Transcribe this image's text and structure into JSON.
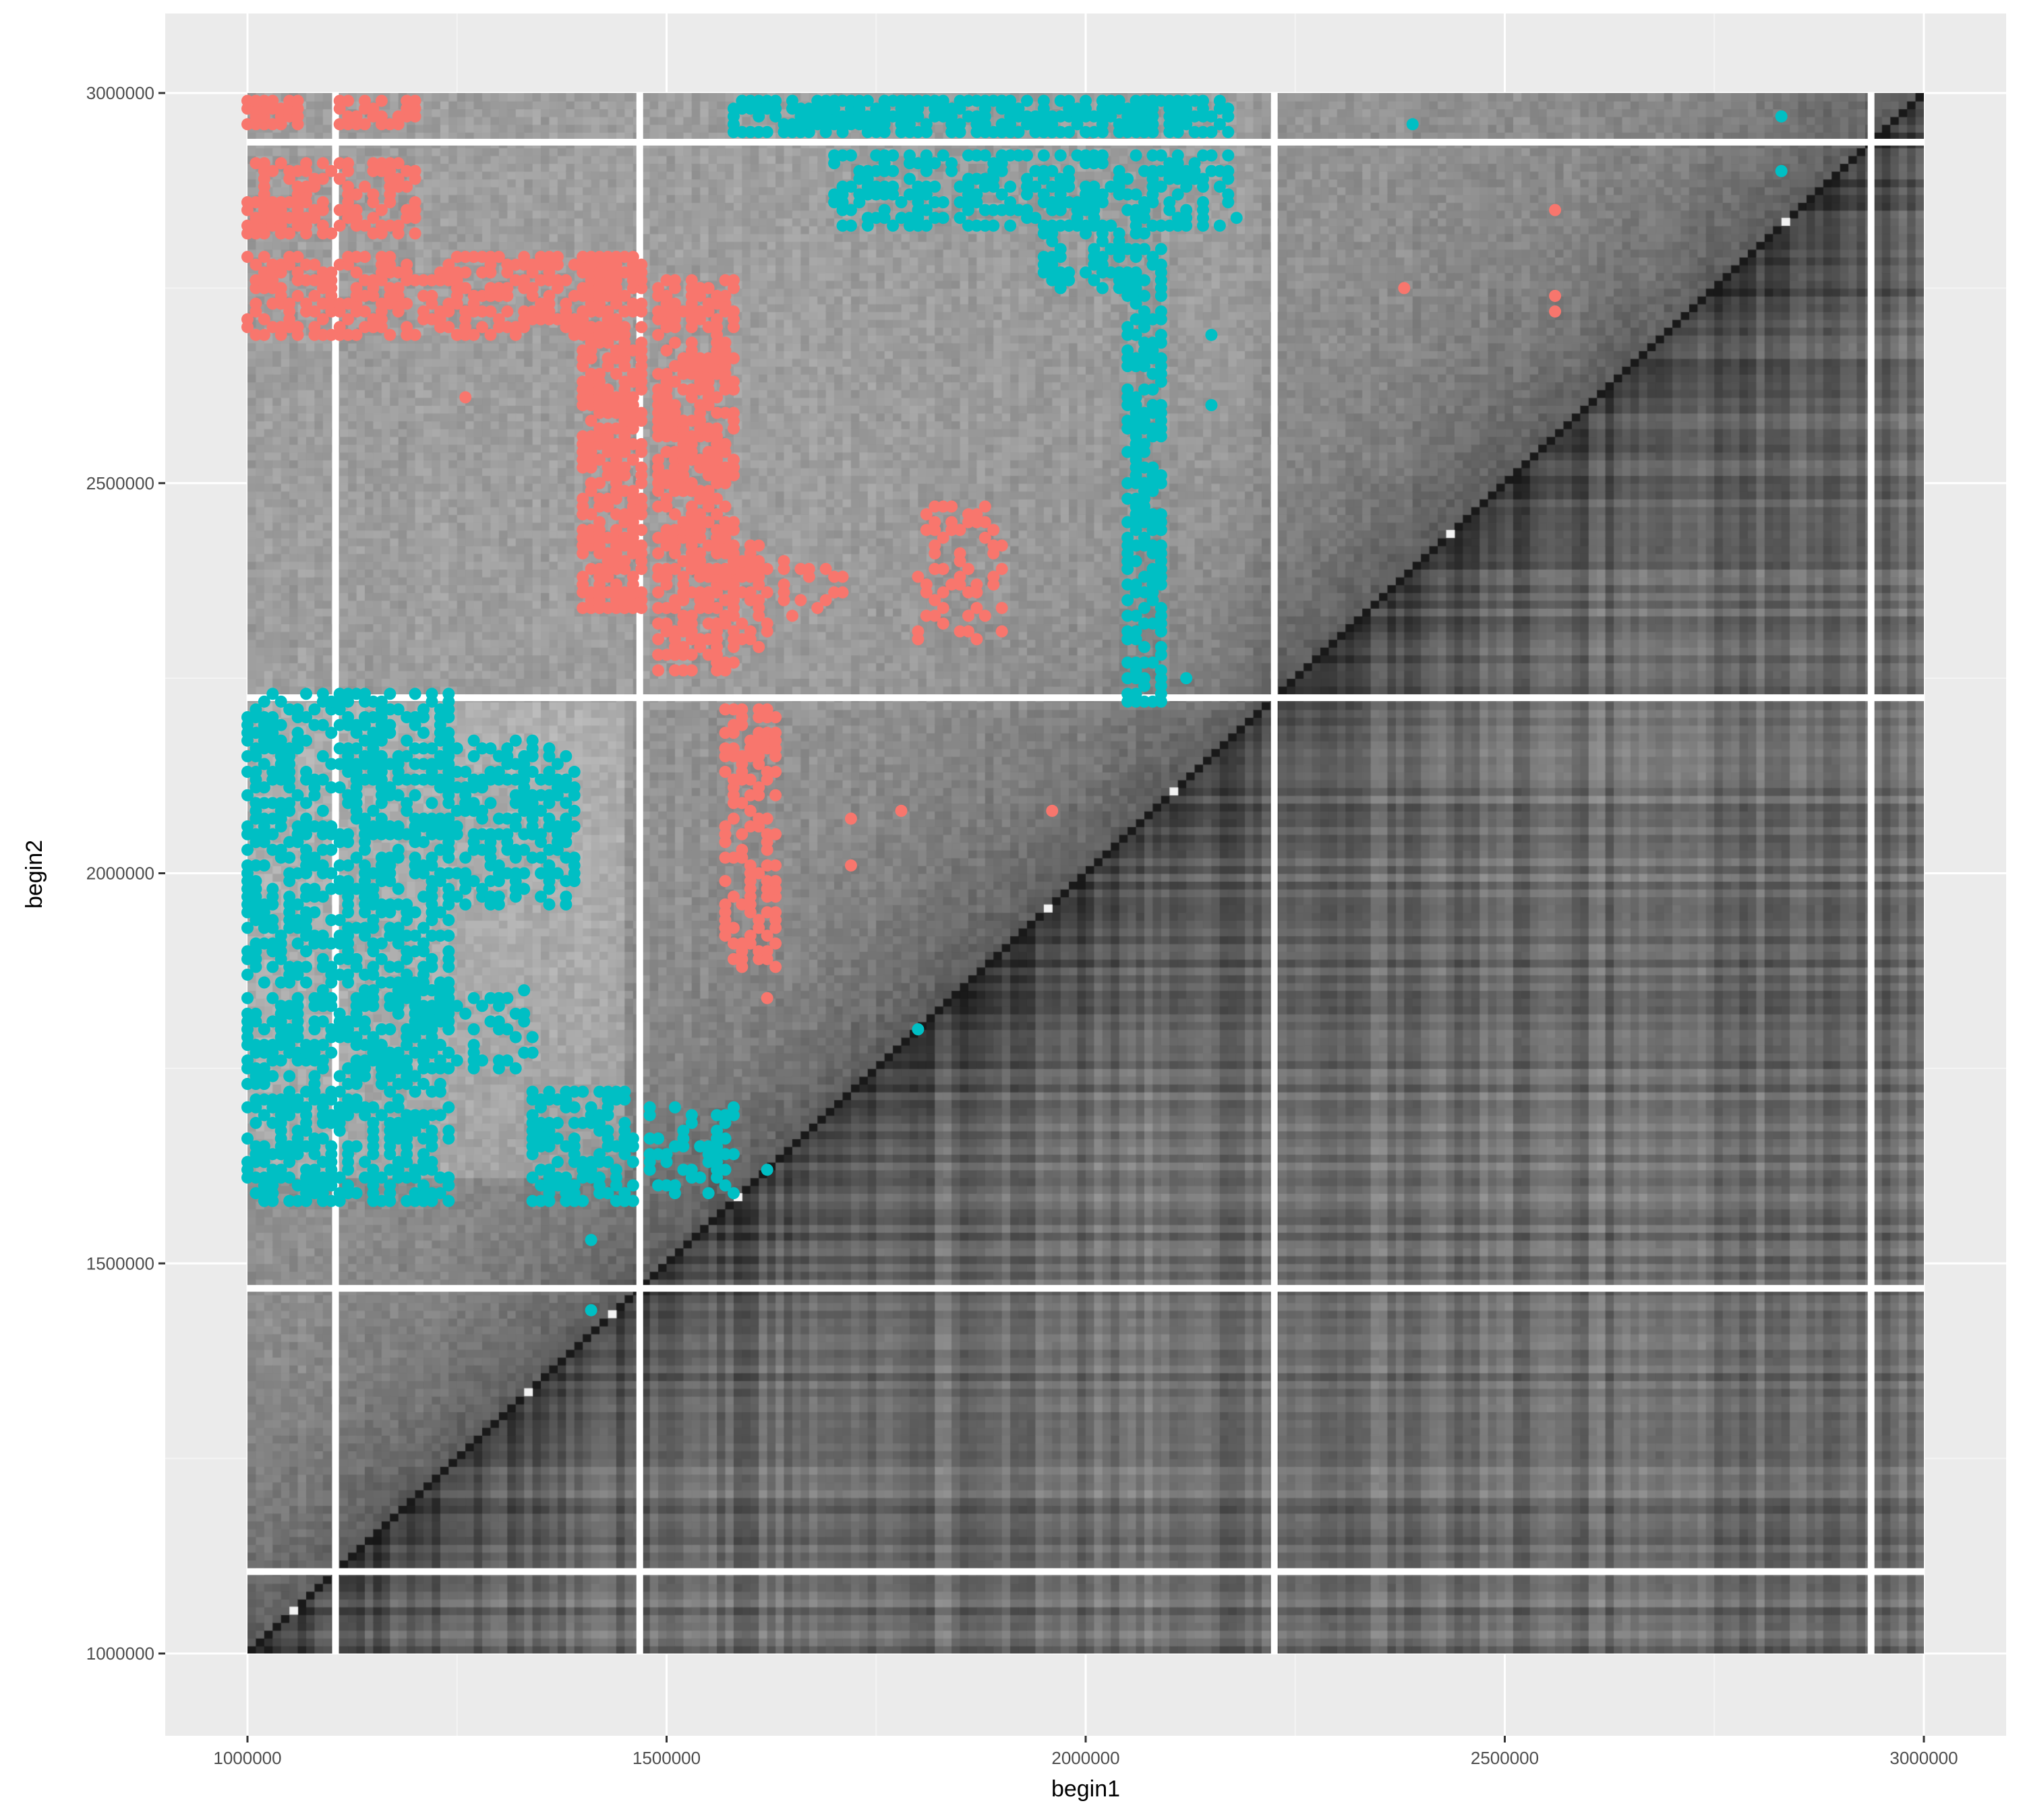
{
  "chart_data": {
    "type": "heatmap",
    "title": "",
    "xlabel": "begin1",
    "ylabel": "begin2",
    "xlim": [
      900000,
      3040000
    ],
    "ylim": [
      910000,
      3040000
    ],
    "x_ticks": [
      1000000,
      1500000,
      2000000,
      2500000,
      3000000
    ],
    "x_tick_labels": [
      "1000000",
      "1500000",
      "2000000",
      "2500000",
      "3000000"
    ],
    "y_ticks": [
      1000000,
      1500000,
      2000000,
      2500000,
      3000000
    ],
    "y_tick_labels": [
      "1000000",
      "1500000",
      "2000000",
      "2500000",
      "3000000"
    ],
    "grid": true,
    "legend": "none",
    "heatmap_extent": {
      "x": [
        1000000,
        3000000
      ],
      "y": [
        1000000,
        3000000
      ]
    },
    "bin_size": 10000,
    "gap_positions": [
      1105000,
      1468000,
      2225000,
      2937000
    ],
    "colors": {
      "panel_bg": "#ebebeb",
      "grid_major": "#ffffff",
      "grid_minor": "#f4f4f4",
      "series_a": "#f8766d",
      "series_b": "#00bfc4"
    },
    "series": [
      {
        "color": "#f8766d",
        "clusters": [
          {
            "x": [
              1000000,
              1060000
            ],
            "y": [
              2960000,
              2990000
            ],
            "density": 0.8
          },
          {
            "x": [
              1000000,
              1200000
            ],
            "y": [
              2820000,
              2910000
            ],
            "density": 0.55
          },
          {
            "x": [
              1000000,
              1420000
            ],
            "y": [
              2690000,
              2790000
            ],
            "density": 0.5
          },
          {
            "x": [
              1100000,
              1200000
            ],
            "y": [
              2960000,
              2990000
            ],
            "density": 0.6
          },
          {
            "x": [
              1400000,
              1470000
            ],
            "y": [
              2340000,
              2790000
            ],
            "density": 0.7
          },
          {
            "x": [
              1490000,
              1580000
            ],
            "y": [
              2260000,
              2760000
            ],
            "density": 0.6
          },
          {
            "x": [
              1560000,
              1620000
            ],
            "y": [
              2290000,
              2420000
            ],
            "density": 0.5
          },
          {
            "x": [
              1570000,
              1630000
            ],
            "y": [
              1880000,
              2210000
            ],
            "density": 0.45
          },
          {
            "x": [
              1640000,
              1720000
            ],
            "y": [
              2330000,
              2400000
            ],
            "density": 0.3
          },
          {
            "x": [
              1800000,
              1900000
            ],
            "y": [
              2300000,
              2470000
            ],
            "density": 0.3
          }
        ],
        "points": [
          {
            "x": 2380000,
            "y": 2750000
          },
          {
            "x": 2560000,
            "y": 2850000
          },
          {
            "x": 2560000,
            "y": 2740000
          },
          {
            "x": 2560000,
            "y": 2720000
          },
          {
            "x": 1720000,
            "y": 2070000
          },
          {
            "x": 1720000,
            "y": 2010000
          },
          {
            "x": 1780000,
            "y": 2080000
          },
          {
            "x": 1960000,
            "y": 2080000
          },
          {
            "x": 1620000,
            "y": 1840000
          },
          {
            "x": 1260000,
            "y": 2610000
          }
        ]
      },
      {
        "color": "#00bfc4",
        "clusters": [
          {
            "x": [
              1580000,
              2170000
            ],
            "y": [
              2950000,
              2990000
            ],
            "density": 0.7
          },
          {
            "x": [
              1700000,
              2170000
            ],
            "y": [
              2830000,
              2920000
            ],
            "density": 0.55
          },
          {
            "x": [
              1950000,
              2090000
            ],
            "y": [
              2750000,
              2830000
            ],
            "density": 0.45
          },
          {
            "x": [
              2050000,
              2090000
            ],
            "y": [
              2220000,
              2760000
            ],
            "density": 0.6
          },
          {
            "x": [
              1000000,
              1240000
            ],
            "y": [
              1580000,
              2230000
            ],
            "density": 0.55
          },
          {
            "x": [
              1240000,
              1390000
            ],
            "y": [
              1960000,
              2170000
            ],
            "density": 0.45
          },
          {
            "x": [
              1340000,
              1460000
            ],
            "y": [
              1580000,
              1720000
            ],
            "density": 0.55
          },
          {
            "x": [
              1480000,
              1580000
            ],
            "y": [
              1590000,
              1700000
            ],
            "density": 0.4
          },
          {
            "x": [
              1180000,
              1340000
            ],
            "y": [
              1750000,
              1850000
            ],
            "density": 0.35
          }
        ],
        "points": [
          {
            "x": 2390000,
            "y": 2960000
          },
          {
            "x": 2830000,
            "y": 2970000
          },
          {
            "x": 2830000,
            "y": 2900000
          },
          {
            "x": 2180000,
            "y": 2840000
          },
          {
            "x": 2150000,
            "y": 2690000
          },
          {
            "x": 2150000,
            "y": 2600000
          },
          {
            "x": 2120000,
            "y": 2250000
          },
          {
            "x": 1800000,
            "y": 1800000
          },
          {
            "x": 1620000,
            "y": 1620000
          },
          {
            "x": 1410000,
            "y": 1440000
          },
          {
            "x": 1410000,
            "y": 1530000
          }
        ]
      }
    ]
  }
}
